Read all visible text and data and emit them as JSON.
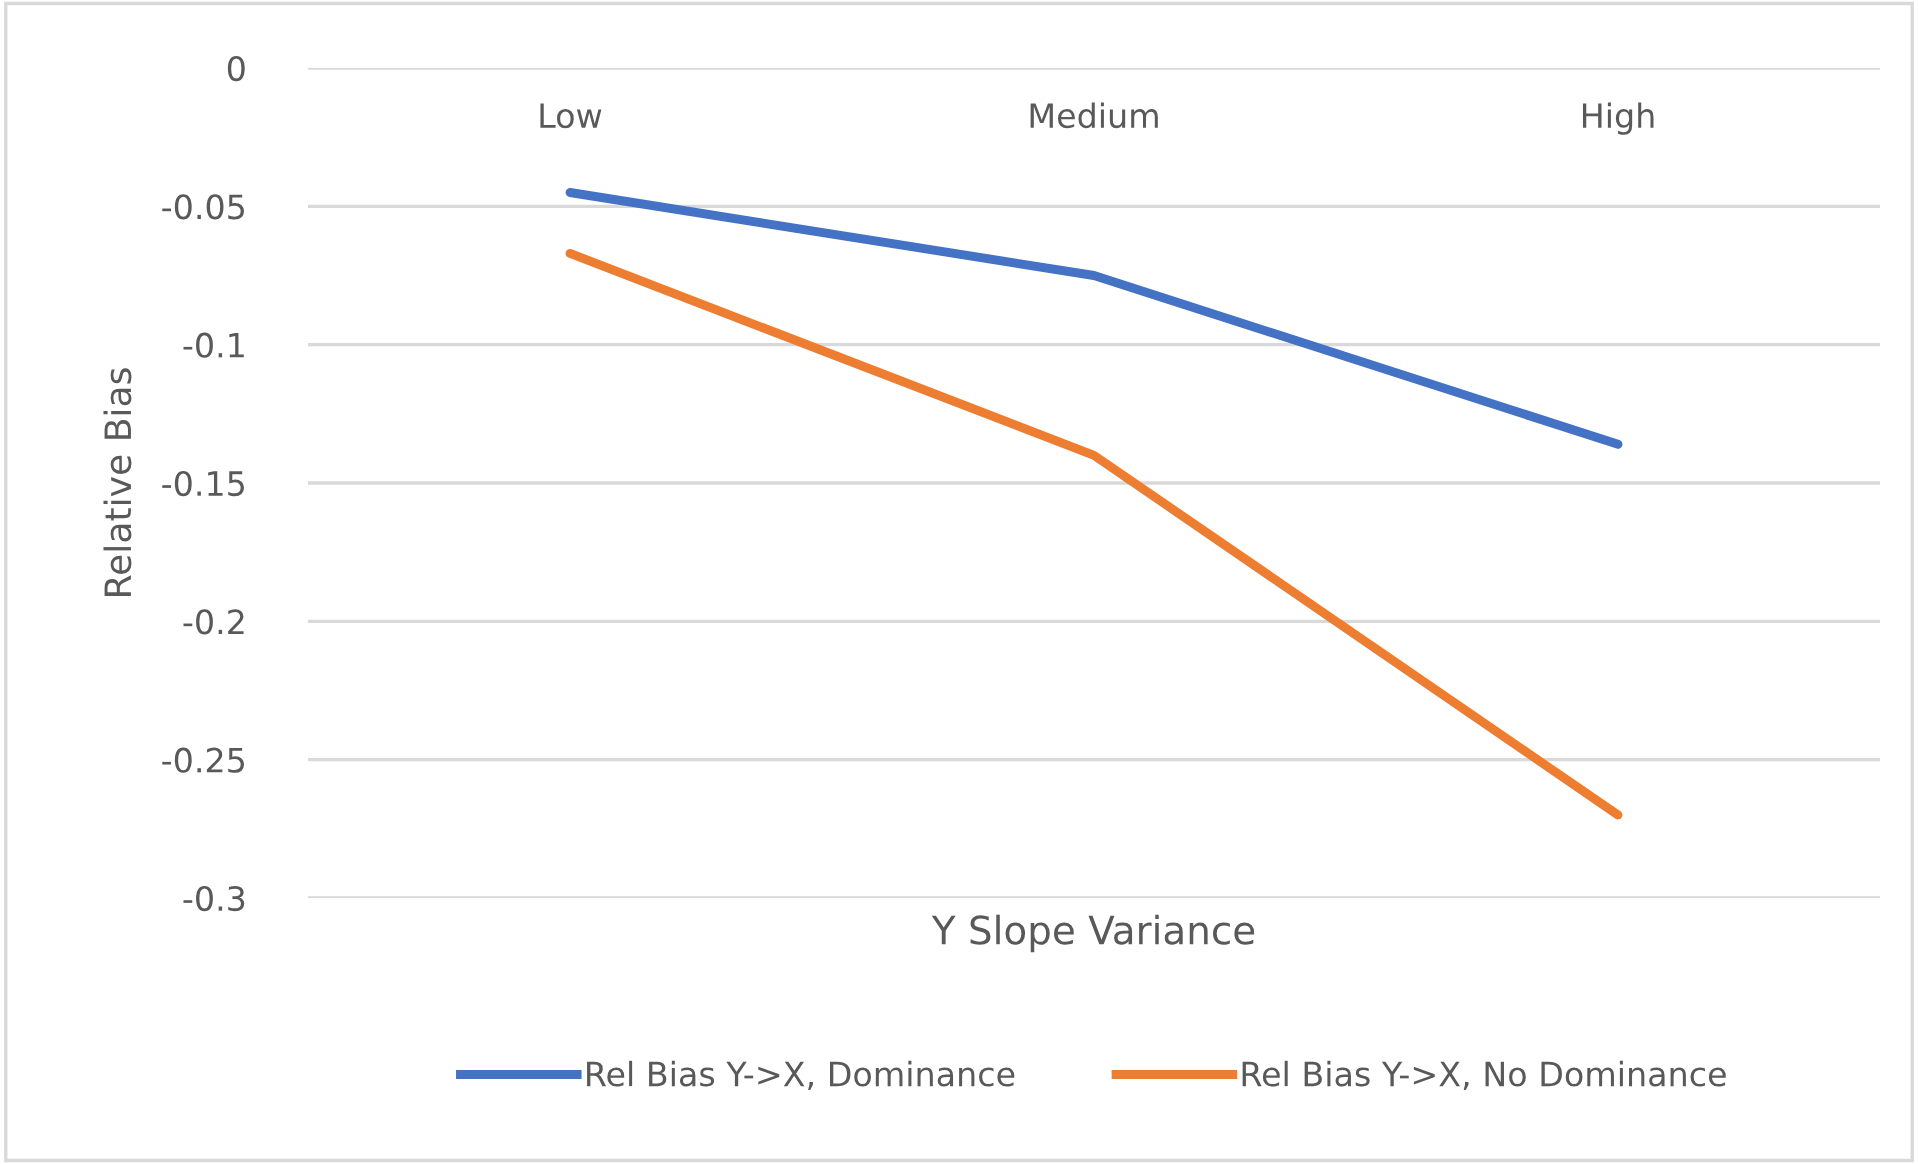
{
  "chart_data": {
    "type": "line",
    "xlabel": "Y Slope Variance",
    "ylabel": "Relative Bias",
    "categories": [
      "Low",
      "Medium",
      "High"
    ],
    "series": [
      {
        "name": "Rel Bias Y->X, Dominance",
        "color": "#4472c4",
        "values": [
          -0.045,
          -0.075,
          -0.136
        ]
      },
      {
        "name": "Rel Bias Y->X, No Dominance",
        "color": "#ed7d31",
        "values": [
          -0.067,
          -0.14,
          -0.27
        ]
      }
    ],
    "ylim": [
      -0.3,
      0
    ],
    "yticks": [
      0,
      -0.05,
      -0.1,
      -0.15,
      -0.2,
      -0.25,
      -0.3
    ],
    "grid": "y",
    "legend": "bottom",
    "marker": "none",
    "line_style": "solid"
  }
}
